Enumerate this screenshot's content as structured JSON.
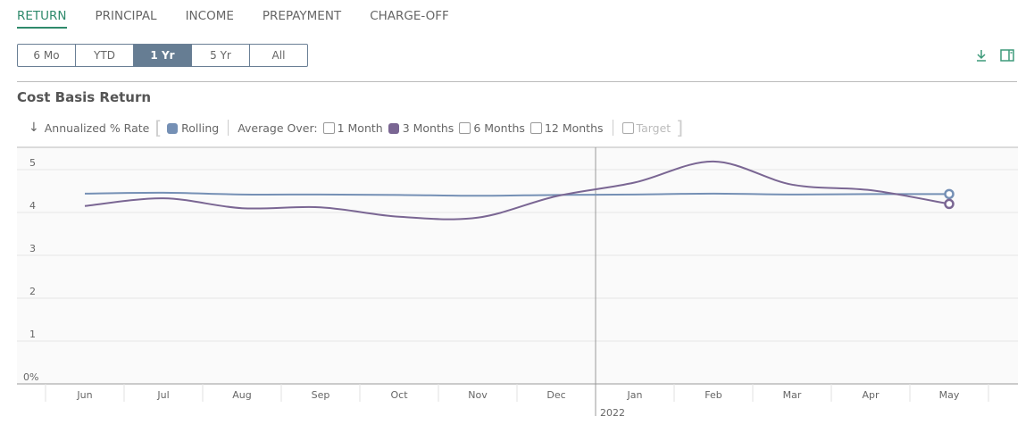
{
  "tabs": [
    "RETURN",
    "PRINCIPAL",
    "INCOME",
    "PREPAYMENT",
    "CHARGE-OFF"
  ],
  "active_tab": "RETURN",
  "ranges": [
    "6 Mo",
    "YTD",
    "1 Yr",
    "5 Yr",
    "All"
  ],
  "selected_range": "1 Yr",
  "toolbar_icons": [
    "download-icon",
    "side-panel-icon"
  ],
  "title": "Cost Basis Return",
  "legend": {
    "axis": "Annualized % Rate",
    "rolling": "Rolling",
    "average_over": "Average Over:",
    "m1": "1 Month",
    "m3": "3 Months",
    "m6": "6 Months",
    "m12": "12 Months",
    "target": "Target"
  },
  "colors": {
    "accent": "#2f8a6c",
    "rolling": "#7590b5",
    "months3": "#7a6693",
    "selected": "#667d93"
  },
  "chart_data": {
    "type": "line",
    "categories": [
      "Jun",
      "Jul",
      "Aug",
      "Sep",
      "Oct",
      "Nov",
      "Dec",
      "Jan",
      "Feb",
      "Mar",
      "Apr",
      "May"
    ],
    "year_label": "2022",
    "yticks": [
      "0%",
      "1",
      "2",
      "3",
      "4",
      "5"
    ],
    "ylim": [
      0,
      5.5
    ],
    "grid": true,
    "series": [
      {
        "name": "Rolling",
        "values": [
          4.44,
          4.46,
          4.42,
          4.42,
          4.41,
          4.39,
          4.41,
          4.42,
          4.44,
          4.42,
          4.43,
          4.43
        ]
      },
      {
        "name": "3 Months",
        "values": [
          4.15,
          4.33,
          4.1,
          4.12,
          3.9,
          3.88,
          4.38,
          4.7,
          5.19,
          4.65,
          4.52,
          4.2
        ]
      }
    ]
  }
}
